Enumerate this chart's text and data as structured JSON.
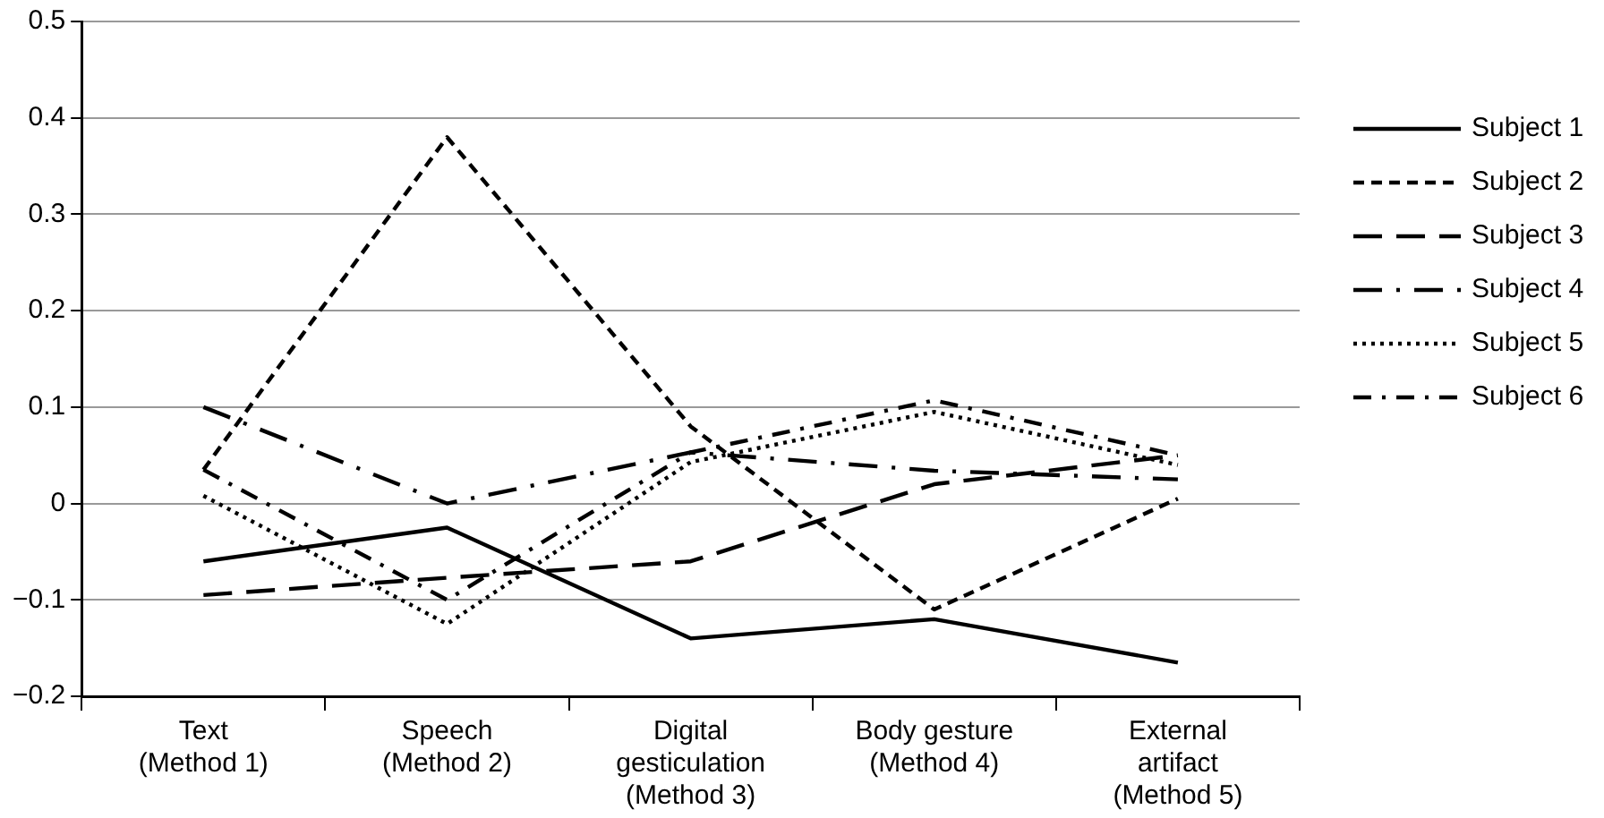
{
  "chart_data": {
    "type": "line",
    "categories": [
      "Text\n(Method 1)",
      "Speech\n(Method 2)",
      "Digital\ngesticulation\n(Method 3)",
      "Body gesture\n(Method 4)",
      "External\nartifact\n(Method 5)"
    ],
    "series": [
      {
        "name": "Subject 1",
        "color": "#000000",
        "line_style": "solid",
        "values": [
          -0.06,
          -0.025,
          -0.14,
          -0.12,
          -0.165
        ]
      },
      {
        "name": "Subject 2",
        "color": "#000000",
        "line_style": "dashed",
        "values": [
          0.035,
          0.38,
          0.08,
          -0.11,
          0.005
        ]
      },
      {
        "name": "Subject 3",
        "color": "#000000",
        "line_style": "longdash",
        "values": [
          -0.095,
          -0.077,
          -0.06,
          0.02,
          0.05
        ]
      },
      {
        "name": "Subject 4",
        "color": "#000000",
        "line_style": "longdashdot",
        "values": [
          0.1,
          0,
          0.053,
          0.034,
          0.025
        ]
      },
      {
        "name": "Subject 5",
        "color": "#000000",
        "line_style": "dotted",
        "values": [
          0.008,
          -0.125,
          0.043,
          0.095,
          0.04
        ]
      },
      {
        "name": "Subject 6",
        "color": "#000000",
        "line_style": "dashdot",
        "values": [
          0.035,
          -0.1,
          0.053,
          0.107,
          0.05
        ]
      }
    ],
    "ylim": [
      -0.2,
      0.5
    ],
    "yticks": [
      -0.2,
      -0.1,
      0,
      0.1,
      0.2,
      0.3,
      0.4,
      0.5
    ],
    "grid": "y",
    "legend": "right",
    "marker": "none"
  }
}
